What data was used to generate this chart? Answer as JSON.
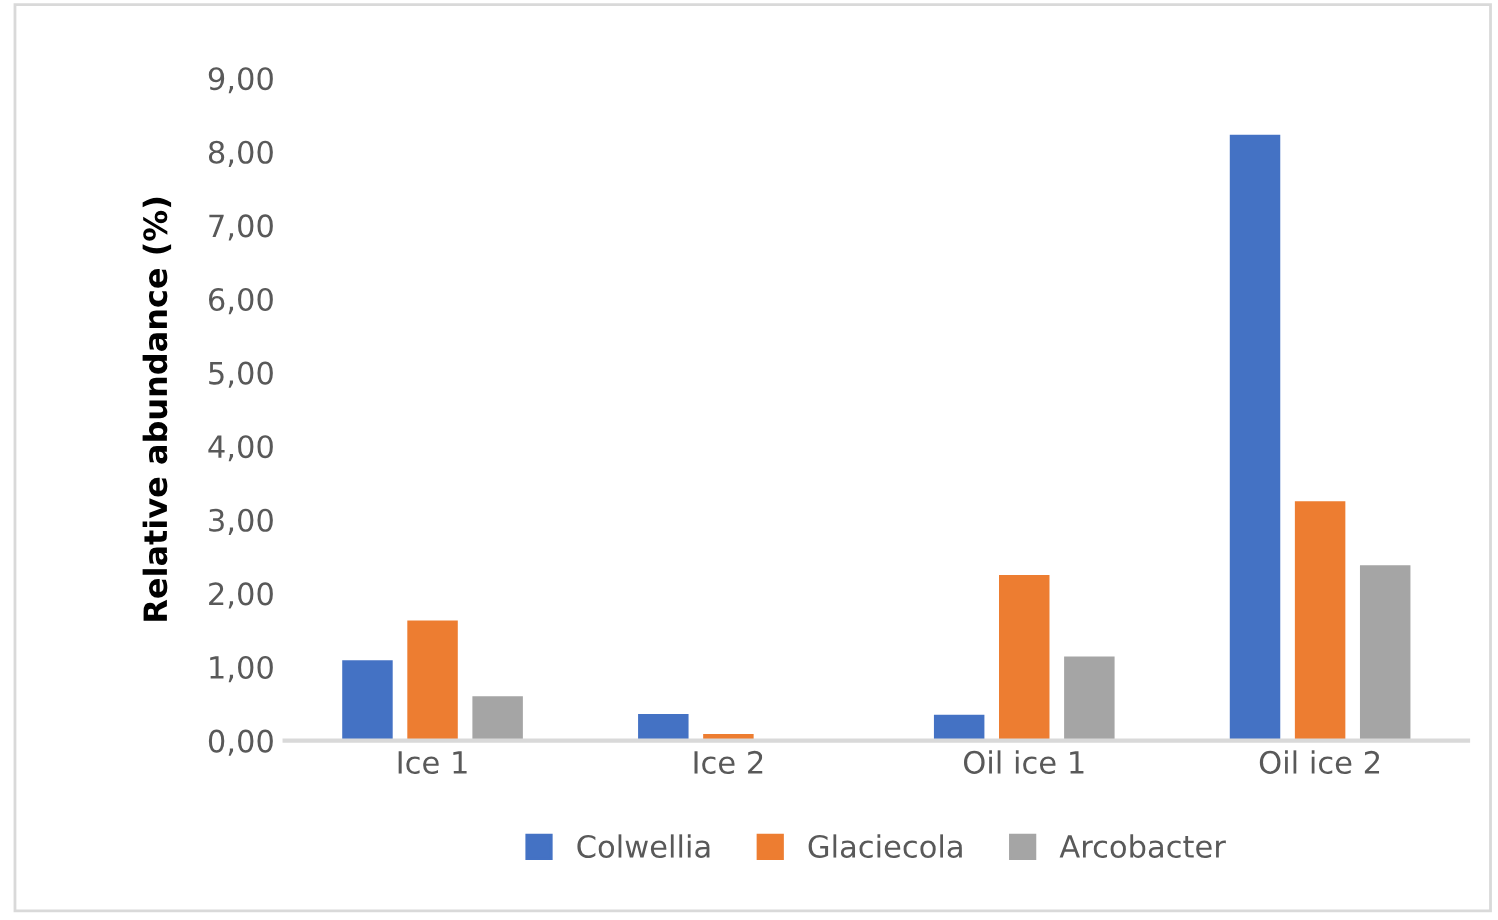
{
  "chart_data": {
    "type": "bar",
    "ylabel": "Relative abundance (%)",
    "categories": [
      "Ice 1",
      "Ice 2",
      "Oil ice 1",
      "Oil ice 2"
    ],
    "series": [
      {
        "name": "Colwellia",
        "color": "#4472c4",
        "values": [
          1.11,
          0.38,
          0.37,
          8.25
        ]
      },
      {
        "name": "Glaciecola",
        "color": "#ed7d31",
        "values": [
          1.65,
          0.11,
          2.27,
          3.27
        ]
      },
      {
        "name": "Arcobacter",
        "color": "#a5a5a5",
        "values": [
          0.62,
          null,
          1.16,
          2.4
        ]
      }
    ],
    "ylim": [
      0,
      9
    ],
    "yticks": [
      {
        "value": 0,
        "label": "0,00"
      },
      {
        "value": 1,
        "label": "1,00"
      },
      {
        "value": 2,
        "label": "2,00"
      },
      {
        "value": 3,
        "label": "3,00"
      },
      {
        "value": 4,
        "label": "4,00"
      },
      {
        "value": 5,
        "label": "5,00"
      },
      {
        "value": 6,
        "label": "6,00"
      },
      {
        "value": 7,
        "label": "7,00"
      },
      {
        "value": 8,
        "label": "8,00"
      },
      {
        "value": 9,
        "label": "9,00"
      }
    ],
    "grid": false,
    "legend": "bottom"
  }
}
